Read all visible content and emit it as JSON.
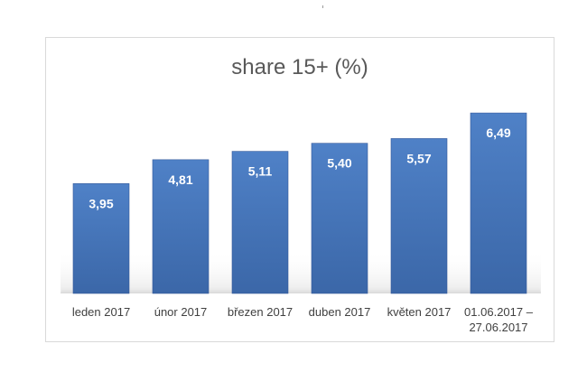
{
  "chart_data": {
    "type": "bar",
    "title": "share 15+ (%)",
    "categories": [
      "leden 2017",
      "únor 2017",
      "březen 2017",
      "duben 2017",
      "květen 2017",
      "01.06.2017 – 27.06.2017"
    ],
    "series": [
      {
        "values": [
          3.95,
          4.81,
          5.11,
          5.4,
          5.57,
          6.49
        ]
      }
    ],
    "data_labels": [
      "3,95",
      "4,81",
      "5,11",
      "5,40",
      "5,57",
      "6,49"
    ],
    "xlabel": "",
    "ylabel": "",
    "ylim": [
      0,
      7
    ],
    "grid": false,
    "legend": "none",
    "colors": {
      "bar_top": "#4f81c7",
      "bar_bottom": "#3b67a8",
      "label_text": "#ffffff",
      "axis_text": "#404040",
      "title_text": "#595959"
    }
  }
}
